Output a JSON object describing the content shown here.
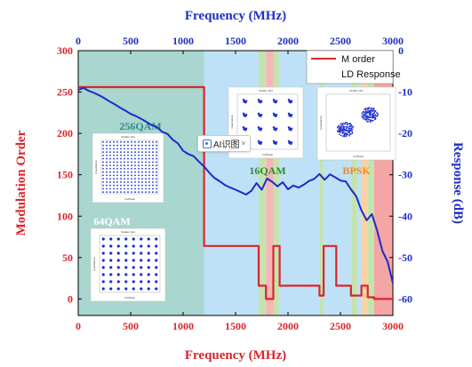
{
  "chart_data": {
    "type": "line",
    "title": "",
    "top_axis": {
      "label": "Frequency (MHz)",
      "range": [
        0,
        3000
      ],
      "ticks": [
        0,
        500,
        1000,
        1500,
        2000,
        2500,
        3000
      ]
    },
    "x_axis": {
      "label": "Frequency (MHz)",
      "range": [
        0,
        3000
      ],
      "ticks": [
        0,
        500,
        1000,
        1500,
        2000,
        2500,
        3000
      ]
    },
    "y_left": {
      "label": "Modulation Order",
      "range": [
        -20,
        300
      ],
      "ticks": [
        0,
        50,
        100,
        150,
        200,
        250,
        300
      ],
      "color": "#d9262b"
    },
    "y_right": {
      "label": "Response (dB)",
      "range": [
        -64,
        0
      ],
      "ticks": [
        0,
        -10,
        -20,
        -30,
        -40,
        -50,
        -60
      ],
      "color": "#1f2fc4"
    },
    "legend": {
      "position": "top-right",
      "entries": [
        "M order",
        "LD Response"
      ]
    },
    "colors": {
      "m_order": "#d9262b",
      "ld_response": "#1b2bc8",
      "band_teal": "#a9d6cf",
      "band_blue": "#bfe1f7",
      "band_green": "#c5e3b0",
      "band_pink": "#f5b6b6",
      "band_orange": "#f9d2a5",
      "band_red": "#f4a5a5"
    },
    "bands": [
      {
        "x0": 0,
        "x1": 1200,
        "color": "band_teal"
      },
      {
        "x0": 1200,
        "x1": 1720,
        "color": "band_blue"
      },
      {
        "x0": 1720,
        "x1": 1790,
        "color": "band_green"
      },
      {
        "x0": 1790,
        "x1": 1860,
        "color": "band_pink"
      },
      {
        "x0": 1860,
        "x1": 1920,
        "color": "band_green"
      },
      {
        "x0": 1920,
        "x1": 2300,
        "color": "band_blue"
      },
      {
        "x0": 2300,
        "x1": 2340,
        "color": "band_green"
      },
      {
        "x0": 2340,
        "x1": 2400,
        "color": "band_blue"
      },
      {
        "x0": 2400,
        "x1": 2600,
        "color": "band_blue"
      },
      {
        "x0": 2600,
        "x1": 2660,
        "color": "band_green"
      },
      {
        "x0": 2660,
        "x1": 2700,
        "color": "band_blue"
      },
      {
        "x0": 2700,
        "x1": 2760,
        "color": "band_orange"
      },
      {
        "x0": 2760,
        "x1": 2820,
        "color": "band_green"
      },
      {
        "x0": 2820,
        "x1": 3000,
        "color": "band_red"
      }
    ],
    "series": [
      {
        "name": "M order",
        "axis": "left",
        "x": [
          0,
          1200,
          1200,
          1720,
          1720,
          1790,
          1790,
          1860,
          1860,
          1920,
          1920,
          2300,
          2300,
          2340,
          2340,
          2460,
          2460,
          2600,
          2600,
          2700,
          2700,
          2760,
          2760,
          2820,
          2820,
          3000
        ],
        "values": [
          256,
          256,
          64,
          64,
          16,
          16,
          0,
          0,
          64,
          64,
          16,
          16,
          4,
          4,
          64,
          64,
          16,
          16,
          4,
          4,
          16,
          16,
          2,
          2,
          0,
          0
        ]
      },
      {
        "name": "LD Response",
        "axis": "right",
        "x": [
          0,
          50,
          100,
          150,
          200,
          250,
          300,
          350,
          400,
          450,
          500,
          550,
          600,
          650,
          700,
          750,
          800,
          850,
          900,
          950,
          1000,
          1050,
          1100,
          1150,
          1200,
          1250,
          1300,
          1350,
          1400,
          1450,
          1500,
          1550,
          1600,
          1650,
          1700,
          1750,
          1800,
          1850,
          1900,
          1950,
          2000,
          2050,
          2100,
          2150,
          2200,
          2250,
          2300,
          2350,
          2400,
          2450,
          2500,
          2550,
          2600,
          2650,
          2700,
          2750,
          2800,
          2850,
          2900,
          2950,
          3000
        ],
        "values": [
          -9.5,
          -9.0,
          -9.7,
          -10.2,
          -10.8,
          -11.5,
          -12.3,
          -13.0,
          -13.8,
          -14.5,
          -15.3,
          -15.8,
          -16.5,
          -17.2,
          -18.0,
          -18.5,
          -19.6,
          -20.1,
          -21.5,
          -22.4,
          -24.2,
          -25.0,
          -25.5,
          -26.8,
          -28.0,
          -29.5,
          -30.8,
          -31.6,
          -32.5,
          -33.1,
          -33.6,
          -34.2,
          -34.8,
          -33.9,
          -32.0,
          -33.6,
          -30.9,
          -31.7,
          -32.8,
          -31.8,
          -33.5,
          -32.6,
          -33.1,
          -32.4,
          -31.5,
          -31.0,
          -29.8,
          -31.2,
          -29.9,
          -30.6,
          -31.4,
          -31.6,
          -33.5,
          -35.2,
          -38.6,
          -41.0,
          -39.5,
          -43.5,
          -48.4,
          -51.0,
          -56.2
        ]
      }
    ],
    "insets": [
      {
        "label": "256QAM",
        "title": "Scatter plot",
        "xlabel": "In-Phase",
        "ylabel": "Quadrature",
        "grid": 16,
        "label_color": "#2f8a8a"
      },
      {
        "label": "64QAM",
        "title": "Scatter plot",
        "xlabel": "In-Phase",
        "ylabel": "Quadrature",
        "grid": 8,
        "label_color": "#ffffff"
      },
      {
        "label": "16QAM",
        "title": "Scatter plot",
        "xlabel": "In-Phase",
        "ylabel": "Quadrature",
        "grid": 4,
        "label_color": "#2f8a2f"
      },
      {
        "label": "BPSK",
        "title": "Scatter plot",
        "xlabel": "In-Phase",
        "ylabel": "Quadrature",
        "grid": 2,
        "label_color": "#f08a1e"
      }
    ]
  },
  "overlay": {
    "ai_button_label": "AI识图",
    "ai_icon": "ai-scan-icon",
    "caret": "˅"
  }
}
